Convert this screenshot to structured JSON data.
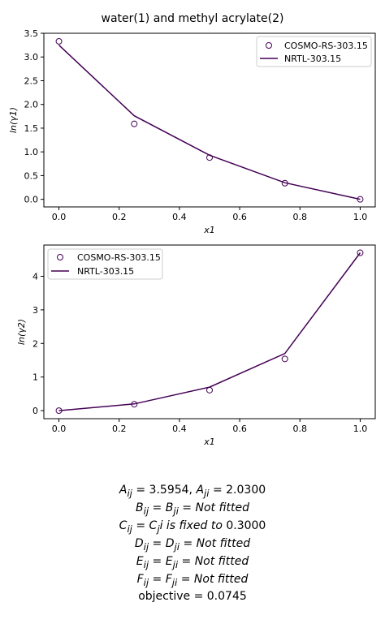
{
  "title": "water(1) and methyl acrylate(2)",
  "chart_data": [
    {
      "type": "line",
      "xlabel": "x1",
      "ylabel": "ln(γ1)",
      "xlim": [
        -0.05,
        1.05
      ],
      "ylim": [
        -0.16,
        3.5
      ],
      "xticks": [
        0.0,
        0.2,
        0.4,
        0.6,
        0.8,
        1.0
      ],
      "xtick_labels": [
        "0.0",
        "0.2",
        "0.4",
        "0.6",
        "0.8",
        "1.0"
      ],
      "yticks": [
        0.0,
        0.5,
        1.0,
        1.5,
        2.0,
        2.5,
        3.0,
        3.5
      ],
      "ytick_labels": [
        "0.0",
        "0.5",
        "1.0",
        "1.5",
        "2.0",
        "2.5",
        "3.0",
        "3.5"
      ],
      "legend_position": "top-right",
      "series": [
        {
          "name": "COSMO-RS-303.15",
          "style": "scatter",
          "x": [
            0.0,
            0.25,
            0.5,
            0.75,
            1.0
          ],
          "y": [
            3.33,
            1.59,
            0.88,
            0.34,
            0.0
          ]
        },
        {
          "name": "NRTL-303.15",
          "style": "line",
          "x": [
            0.0,
            0.25,
            0.5,
            0.75,
            1.0
          ],
          "y": [
            3.25,
            1.76,
            0.93,
            0.35,
            0.0
          ]
        }
      ],
      "grid": false
    },
    {
      "type": "line",
      "xlabel": "x1",
      "ylabel": "ln(γ2)",
      "xlim": [
        -0.05,
        1.05
      ],
      "ylim": [
        -0.24,
        4.93
      ],
      "xticks": [
        0.0,
        0.2,
        0.4,
        0.6,
        0.8,
        1.0
      ],
      "xtick_labels": [
        "0.0",
        "0.2",
        "0.4",
        "0.6",
        "0.8",
        "1.0"
      ],
      "yticks": [
        0,
        1,
        2,
        3,
        4
      ],
      "ytick_labels": [
        "0",
        "1",
        "2",
        "3",
        "4"
      ],
      "legend_position": "top-left",
      "series": [
        {
          "name": "COSMO-RS-303.15",
          "style": "scatter",
          "x": [
            0.0,
            0.25,
            0.5,
            0.75,
            1.0
          ],
          "y": [
            0.0,
            0.19,
            0.61,
            1.54,
            4.7
          ]
        },
        {
          "name": "NRTL-303.15",
          "style": "line",
          "x": [
            0.0,
            0.25,
            0.5,
            0.75,
            1.0
          ],
          "y": [
            0.0,
            0.2,
            0.7,
            1.7,
            4.7
          ]
        }
      ],
      "grid": false
    }
  ],
  "annotation": {
    "line_a_lhs1": "A",
    "line_a_sub1": "ij",
    "line_a_val1": " = 3.5954, ",
    "line_a_lhs2": "A",
    "line_a_sub2": "ji",
    "line_a_val2": " = 2.0300",
    "line_b_lhs": "B",
    "line_b_sub1": "ij",
    "line_b_mid": " = B",
    "line_b_sub2": "ji",
    "line_b_tail": " =  Not fitted",
    "line_c_lhs": "C",
    "line_c_sub1": "ij",
    "line_c_mid": " = C",
    "line_c_sub2": "j",
    "line_c_tail": "i is fixed to",
    "line_c_val": " 0.3000",
    "line_d_lhs": "D",
    "line_d_sub1": "ij",
    "line_d_mid": " = D",
    "line_d_sub2": "ji",
    "line_d_tail": " =  Not fitted",
    "line_e_lhs": "E",
    "line_e_sub1": "ij",
    "line_e_mid": " = E",
    "line_e_sub2": "ji",
    "line_e_tail": " =  Not fitted",
    "line_f_lhs": "F",
    "line_f_sub1": "ij",
    "line_f_mid": " = F",
    "line_f_sub2": "ji",
    "line_f_tail": " =  Not fitted",
    "objective": "objective = 0.0745"
  },
  "colors": {
    "series": "#440154",
    "axes": "#000000",
    "legend_border": "#cccccc"
  }
}
